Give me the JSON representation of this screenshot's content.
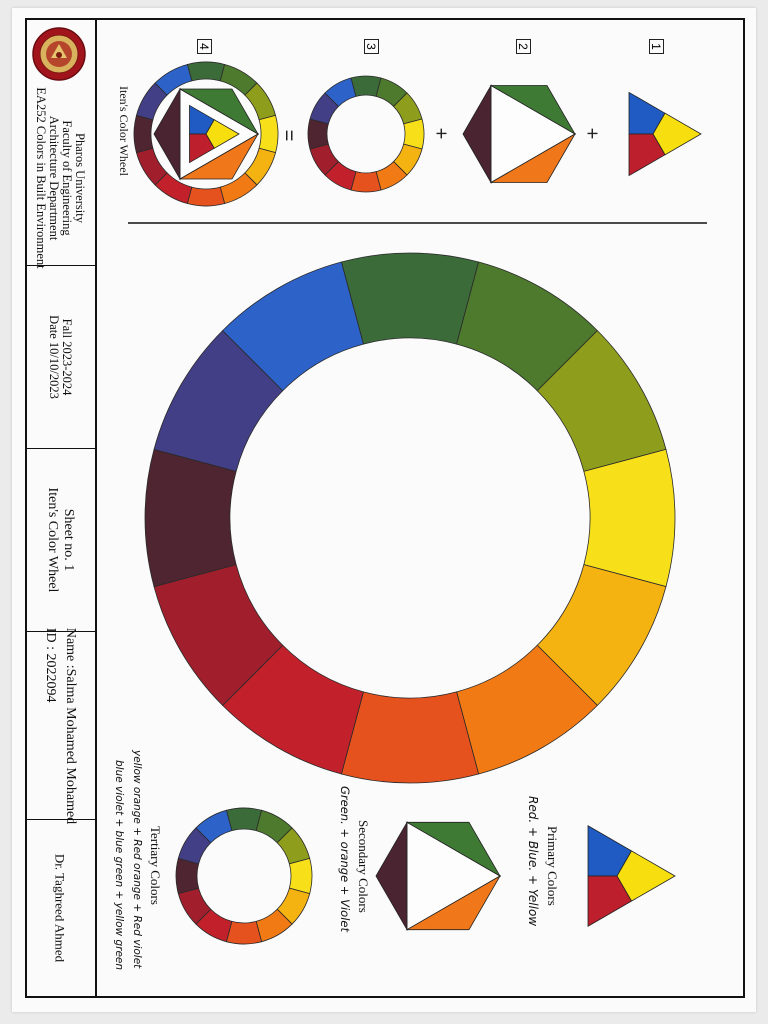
{
  "title_block": {
    "university": "Pharos University",
    "faculty": "Faculty of Engineering",
    "department": "Architecture Department",
    "course": "EA252 Colors in Built Environment",
    "semester": "Fall 2023-2024",
    "date": "Date 10/10/2023",
    "sheet_no": "Sheet no. 1",
    "sheet_title": "Iten's Color Wheel",
    "name": "Name :Salma Mohamed Mohamed",
    "id": "ID : 2022094",
    "instructor": "Dr. Taghreed Ahmed"
  },
  "construction": {
    "caption": "Iten's Color Wheel",
    "steps": [
      "1",
      "2",
      "3",
      "4"
    ],
    "plus": "+",
    "equals": "="
  },
  "legend": {
    "primary_title": "Primary Colors",
    "primary_formula": "Red. + Blue. + Yellow",
    "secondary_title": "Secondary Colors",
    "secondary_formula": "Green. + orange + Violet",
    "tertiary_title": "Tertiary Colors",
    "tertiary_line1": "yellow orange + Red orange + Red violet",
    "tertiary_line2": "blue violet + blue green + yellow green"
  },
  "colors": {
    "yellow": "#f7e01a",
    "yellow_orange": "#f5b312",
    "orange": "#f17a14",
    "red_orange": "#e6521e",
    "red": "#c2212b",
    "red_violet": "#a11f2d",
    "violet": "#4e2530",
    "blue_violet": "#433f86",
    "blue": "#2d63c9",
    "blue_green": "#3c6b3a",
    "green": "#4d7a2c",
    "yellow_green": "#8e9e1c",
    "primary_blue": "#1f5bc2",
    "primary_red": "#bd1f2c",
    "primary_yellow": "#f7de0f",
    "secondary_green": "#3f7a35",
    "secondary_orange": "#f0781b",
    "secondary_violet": "#4a2430"
  }
}
